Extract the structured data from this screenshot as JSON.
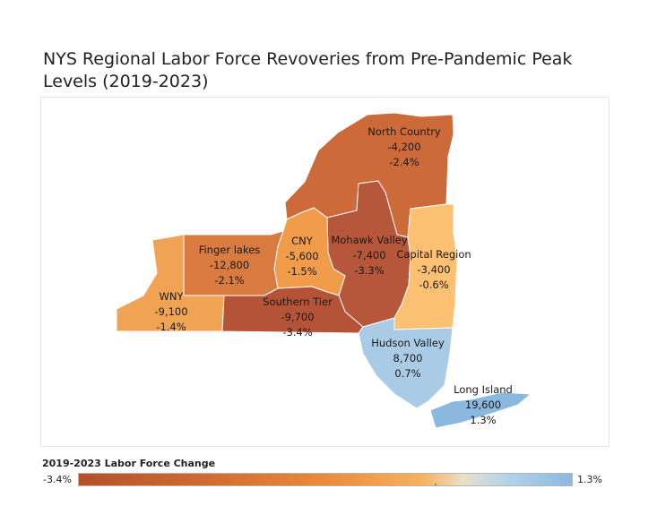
{
  "title": "NYS Regional Labor Force Revoveries from Pre-Pandemic Peak Levels (2019-2023)",
  "legend": {
    "title": "2019-2023 Labor Force Change",
    "min_label": "-3.4%",
    "max_label": "1.3%",
    "color_low": "#b5502a",
    "color_mid": "#ec8a3c",
    "color_high": "#8ab8df"
  },
  "regions": [
    {
      "name": "North Country",
      "change": "-4,200",
      "pct": "-2.4%",
      "pct_value": -2.4,
      "color": "#cc6a3a"
    },
    {
      "name": "Mohawk Valley",
      "change": "-7,400",
      "pct": "-3.3%",
      "pct_value": -3.3,
      "color": "#b6563b"
    },
    {
      "name": "Capital Region",
      "change": "-3,400",
      "pct": "-0.6%",
      "pct_value": -0.6,
      "color": "#fbc072"
    },
    {
      "name": "CNY",
      "change": "-5,600",
      "pct": "-1.5%",
      "pct_value": -1.5,
      "color": "#f19c4a"
    },
    {
      "name": "Finger lakes",
      "change": "-12,800",
      "pct": "-2.1%",
      "pct_value": -2.1,
      "color": "#d97a41"
    },
    {
      "name": "WNY",
      "change": "-9,100",
      "pct": "-1.4%",
      "pct_value": -1.4,
      "color": "#f0a352"
    },
    {
      "name": "Southern Tier",
      "change": "-9,700",
      "pct": "-3.4%",
      "pct_value": -3.4,
      "color": "#b45338"
    },
    {
      "name": "Hudson Valley",
      "change": "8,700",
      "pct": "0.7%",
      "pct_value": 0.7,
      "color": "#a9cbe6"
    },
    {
      "name": "Long Island",
      "change": "19,600",
      "pct": "1.3%",
      "pct_value": 1.3,
      "color": "#8ab8df"
    }
  ]
}
